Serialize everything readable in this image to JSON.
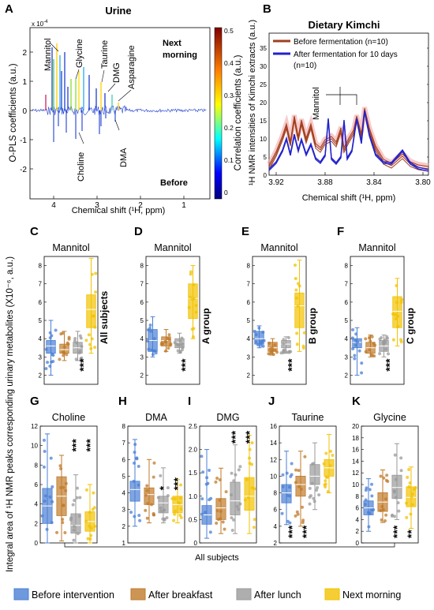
{
  "colors": {
    "before": "#4a7fd4",
    "breakfast": "#c07a2a",
    "lunch": "#9a9a9a",
    "morning": "#f2c200",
    "fermBefore": "#a04020",
    "fermAfter": "#2222cc",
    "spectrum": "#1f3fcf"
  },
  "panelA": {
    "letter": "A",
    "title": "Urine",
    "ylabel": "O-PLS coefficients (a.u.)",
    "xlabel": "Chemical shift (¹H, ppm)",
    "exponent": "x 10",
    "exponentPower": "-4",
    "yticks": [
      "2",
      "1",
      "0",
      "-1",
      "-2"
    ],
    "xticks": [
      "4",
      "3",
      "2",
      "1"
    ],
    "cbLabel": "Correlation coefficients (a.u.)",
    "cbTicks": [
      "0.5",
      "0.4",
      "0.3",
      "0.2",
      "0.1",
      "0"
    ],
    "top": "Next morning",
    "bottom": "Before",
    "annotations": [
      "Mannitol",
      "Choline",
      "Glycine",
      "Taurine",
      "DMG",
      "Asparagine",
      "DMA"
    ]
  },
  "panelB": {
    "letter": "B",
    "title": "Dietary Kimchi",
    "ylabel": "¹H NMR intensities of Kimchi extracts (a.u.)",
    "xlabel": "Chemical shift (¹H, ppm)",
    "xticks": [
      "3.92",
      "3.88",
      "3.84",
      "3.80"
    ],
    "yticks": [
      "0",
      "5",
      "10",
      "15",
      "20",
      "25",
      "30",
      "35"
    ],
    "legend1": "Before fermentation (n=10)",
    "legend2": "After fermentation for 10 days",
    "legend2b": "(n=10)",
    "annotation": "Mannitol"
  },
  "panels": [
    {
      "letter": "C",
      "title": "Mannitol",
      "side": "All subjects",
      "stars": [
        "***"
      ],
      "yticks": [
        "2",
        "3",
        "4",
        "5",
        "6",
        "7",
        "8"
      ],
      "boxes": [
        {
          "q1": 3.2,
          "med": 3.6,
          "q3": 3.9,
          "lo": 2.0,
          "hi": 5.0
        },
        {
          "q1": 3.2,
          "med": 3.4,
          "q3": 3.7,
          "lo": 2.8,
          "hi": 4.4
        },
        {
          "q1": 3.2,
          "med": 3.5,
          "q3": 3.8,
          "lo": 2.8,
          "hi": 4.4
        },
        {
          "q1": 4.6,
          "med": 5.6,
          "q3": 6.4,
          "lo": 3.2,
          "hi": 8.4
        }
      ]
    },
    {
      "letter": "D",
      "title": "Mannitol",
      "side": "A group",
      "stars": [
        "***"
      ],
      "yticks": [
        "2",
        "3",
        "4",
        "5",
        "6",
        "7",
        "8"
      ],
      "boxes": [
        {
          "q1": 3.3,
          "med": 3.9,
          "q3": 4.5,
          "lo": 3.0,
          "hi": 5.2
        },
        {
          "q1": 3.6,
          "med": 3.9,
          "q3": 4.1,
          "lo": 3.3,
          "hi": 4.5
        },
        {
          "q1": 3.5,
          "med": 3.8,
          "q3": 4.0,
          "lo": 3.2,
          "hi": 4.3
        },
        {
          "q1": 5.1,
          "med": 6.2,
          "q3": 7.0,
          "lo": 4.0,
          "hi": 8.0
        }
      ]
    },
    {
      "letter": "E",
      "title": "Mannitol",
      "side": "B group",
      "stars": [
        "***"
      ],
      "yticks": [
        "2",
        "3",
        "4",
        "5",
        "6",
        "7",
        "8"
      ],
      "boxes": [
        {
          "q1": 3.7,
          "med": 4.0,
          "q3": 4.4,
          "lo": 3.5,
          "hi": 4.7
        },
        {
          "q1": 3.3,
          "med": 3.5,
          "q3": 3.8,
          "lo": 3.1,
          "hi": 4.0
        },
        {
          "q1": 3.5,
          "med": 3.7,
          "q3": 3.9,
          "lo": 3.2,
          "hi": 4.1
        },
        {
          "q1": 4.6,
          "med": 5.8,
          "q3": 6.5,
          "lo": 3.3,
          "hi": 8.3
        }
      ]
    },
    {
      "letter": "F",
      "title": "Mannitol",
      "side": "C group",
      "stars": [
        "***"
      ],
      "yticks": [
        "2",
        "3",
        "4",
        "5",
        "6",
        "7",
        "8"
      ],
      "boxes": [
        {
          "q1": 3.5,
          "med": 3.8,
          "q3": 4.0,
          "lo": 2.0,
          "hi": 4.6
        },
        {
          "q1": 3.2,
          "med": 3.5,
          "q3": 3.8,
          "lo": 3.0,
          "hi": 4.2
        },
        {
          "q1": 3.3,
          "med": 3.6,
          "q3": 3.9,
          "lo": 3.0,
          "hi": 4.2
        },
        {
          "q1": 4.6,
          "med": 5.5,
          "q3": 6.3,
          "lo": 3.6,
          "hi": 7.3
        }
      ]
    },
    {
      "letter": "G",
      "title": "Choline",
      "stars": [
        "***",
        "***"
      ],
      "ymin": 0,
      "ymax": 12,
      "yticks": [
        "0",
        "2",
        "4",
        "6",
        "8",
        "10",
        "12"
      ],
      "boxes": [
        {
          "q1": 2.0,
          "med": 3.8,
          "q3": 5.6,
          "lo": 0,
          "hi": 11.2
        },
        {
          "q1": 2.8,
          "med": 4.8,
          "q3": 6.8,
          "lo": 0.2,
          "hi": 9.0
        },
        {
          "q1": 1.0,
          "med": 1.8,
          "q3": 3.0,
          "lo": 0,
          "hi": 7.0
        },
        {
          "q1": 1.2,
          "med": 2.2,
          "q3": 3.2,
          "lo": 0,
          "hi": 6.0
        }
      ]
    },
    {
      "letter": "H",
      "title": "DMA",
      "stars": [
        "*",
        "***"
      ],
      "ymin": 1,
      "ymax": 8,
      "yticks": [
        "1",
        "2",
        "3",
        "4",
        "5",
        "6",
        "7",
        "8"
      ],
      "boxes": [
        {
          "q1": 3.5,
          "med": 4.2,
          "q3": 4.7,
          "lo": 2.0,
          "hi": 7.2
        },
        {
          "q1": 3.3,
          "med": 3.9,
          "q3": 4.3,
          "lo": 2.2,
          "hi": 6.0
        },
        {
          "q1": 2.8,
          "med": 3.4,
          "q3": 3.8,
          "lo": 2.2,
          "hi": 5.5
        },
        {
          "q1": 2.8,
          "med": 3.3,
          "q3": 3.8,
          "lo": 2.2,
          "hi": 4.8
        }
      ]
    },
    {
      "letter": "I",
      "title": "DMG",
      "stars": [
        "***",
        "***"
      ],
      "ymin": 0,
      "ymax": 2.5,
      "yticks": [
        "0",
        "0.5",
        "1.0",
        "1.5",
        "2.0",
        "2.5"
      ],
      "boxes": [
        {
          "q1": 0.4,
          "med": 0.6,
          "q3": 0.8,
          "lo": 0.1,
          "hi": 2.0
        },
        {
          "q1": 0.5,
          "med": 0.75,
          "q3": 0.95,
          "lo": 0.2,
          "hi": 1.6
        },
        {
          "q1": 0.6,
          "med": 0.9,
          "q3": 1.3,
          "lo": 0.2,
          "hi": 2.1
        },
        {
          "q1": 0.7,
          "med": 1.0,
          "q3": 1.4,
          "lo": 0.2,
          "hi": 2.3
        }
      ]
    },
    {
      "letter": "J",
      "title": "Taurine",
      "stars": [
        "***",
        "***"
      ],
      "ymin": 2,
      "ymax": 16,
      "yticks": [
        "2",
        "4",
        "6",
        "8",
        "10",
        "12",
        "14",
        "16"
      ],
      "boxes": [
        {
          "q1": 6.8,
          "med": 8.0,
          "q3": 9.0,
          "lo": 4.2,
          "hi": 13.0
        },
        {
          "q1": 7.6,
          "med": 9.0,
          "q3": 10.0,
          "lo": 4.0,
          "hi": 13.0
        },
        {
          "q1": 9.0,
          "med": 10.0,
          "q3": 11.4,
          "lo": 6.0,
          "hi": 14.0
        },
        {
          "q1": 10.0,
          "med": 11.0,
          "q3": 12.0,
          "lo": 8.0,
          "hi": 15.0
        }
      ]
    },
    {
      "letter": "K",
      "title": "Glycine",
      "stars": [
        "***",
        "**"
      ],
      "ymin": 0,
      "ymax": 20,
      "yticks": [
        "0",
        "2",
        "4",
        "6",
        "8",
        "10",
        "12",
        "14",
        "16",
        "18",
        "20"
      ],
      "boxes": [
        {
          "q1": 4.8,
          "med": 6.0,
          "q3": 7.2,
          "lo": 2.0,
          "hi": 11.0
        },
        {
          "q1": 5.4,
          "med": 7.0,
          "q3": 8.6,
          "lo": 3.5,
          "hi": 12.5
        },
        {
          "q1": 7.6,
          "med": 9.5,
          "q3": 11.6,
          "lo": 4.0,
          "hi": 17.0
        },
        {
          "q1": 6.2,
          "med": 7.8,
          "q3": 9.6,
          "lo": 2.5,
          "hi": 13.0
        }
      ]
    }
  ],
  "sharedYLabel": "Integral area of ¹H NMR peaks corresponding urinary metabolites (X10⁻⁶, a.u.)",
  "allSubjects": "All subjects",
  "legend": [
    "Before intervention",
    "After breakfast",
    "After lunch",
    "Next morning"
  ]
}
